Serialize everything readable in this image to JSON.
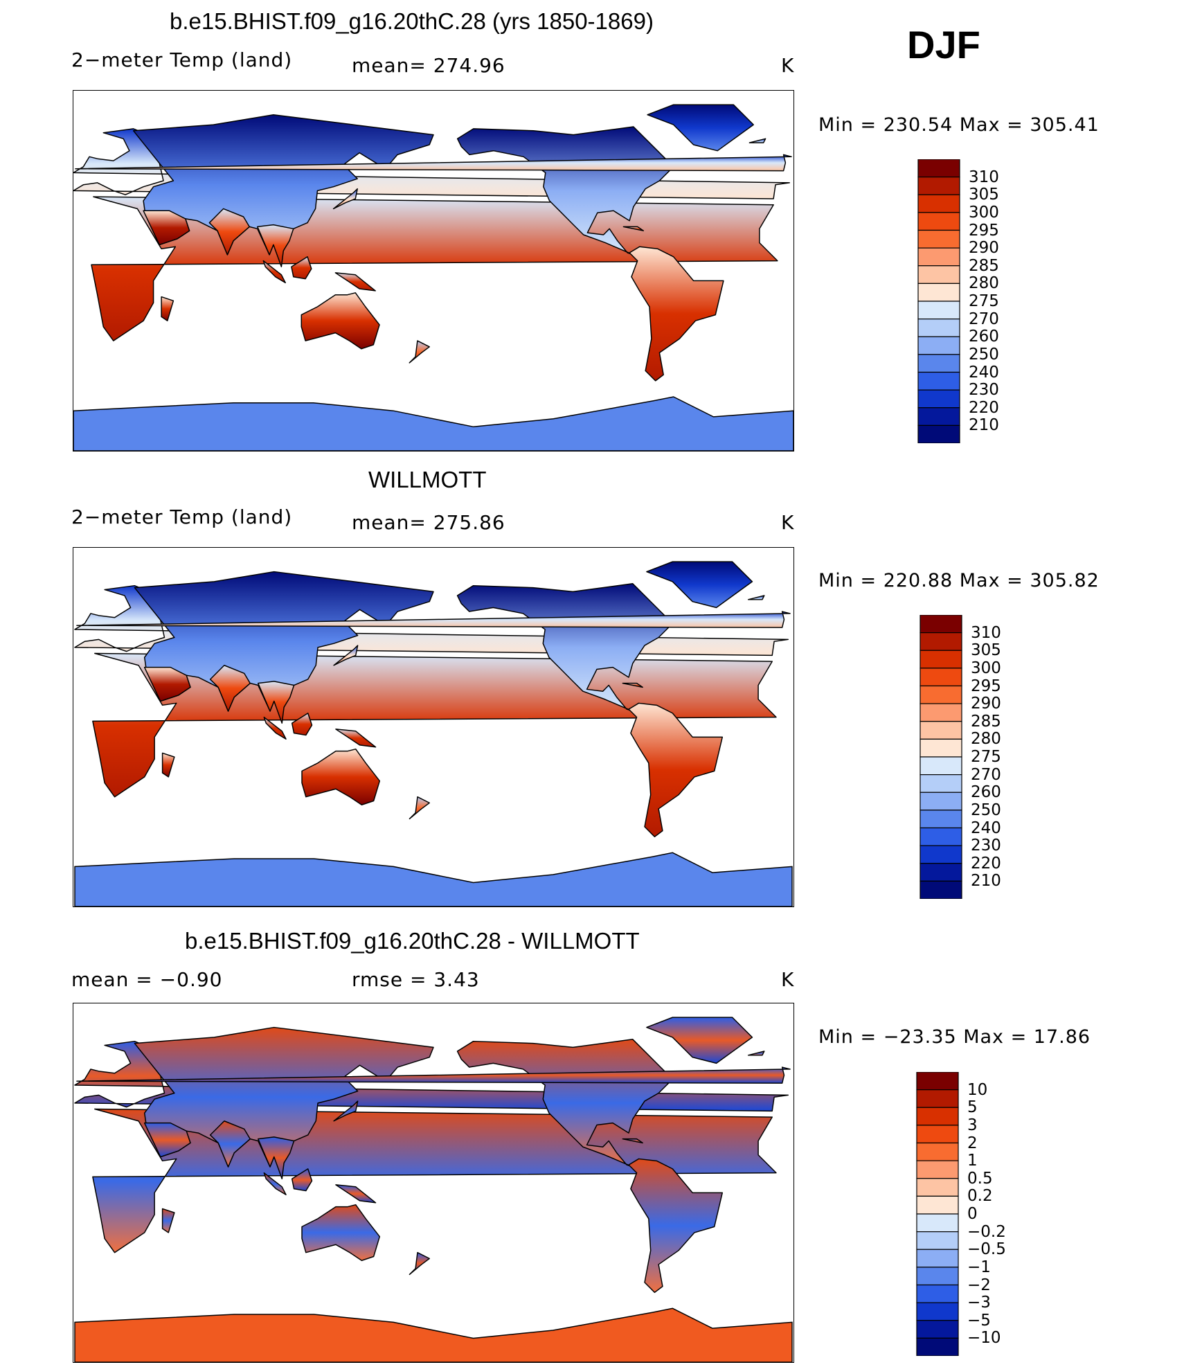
{
  "season": "DJF",
  "panels": [
    {
      "title": "b.e15.BHIST.f09_g16.20thC.28 (yrs 1850-1869)",
      "left_label": "2−meter Temp (land)",
      "mid_label": "mean=  274.96",
      "units": "K",
      "stats": "Min  =  230.54  Max  =  305.41",
      "colorbar_labels": [
        "310",
        "305",
        "300",
        "295",
        "290",
        "285",
        "280",
        "275",
        "270",
        "260",
        "250",
        "240",
        "230",
        "220",
        "210"
      ]
    },
    {
      "title": "WILLMOTT",
      "left_label": "2−meter Temp (land)",
      "mid_label": "mean=  275.86",
      "units": "K",
      "stats": "Min  =  220.88  Max  =  305.82",
      "colorbar_labels": [
        "310",
        "305",
        "300",
        "295",
        "290",
        "285",
        "280",
        "275",
        "270",
        "260",
        "250",
        "240",
        "230",
        "220",
        "210"
      ]
    },
    {
      "title": "b.e15.BHIST.f09_g16.20thC.28 - WILLMOTT",
      "left_label": "mean  =     −0.90",
      "mid_label": "rmse  =     3.43",
      "units": "K",
      "stats": "Min  =  −23.35  Max  =     17.86",
      "colorbar_labels": [
        "10",
        "5",
        "3",
        "2",
        "1",
        "0.5",
        "0.2",
        "0",
        "−0.2",
        "−0.5",
        "−1",
        "−2",
        "−3",
        "−5",
        "−10"
      ]
    }
  ],
  "colors": {
    "abs_scale": [
      "#7a0000",
      "#b21a00",
      "#d83000",
      "#ee4a10",
      "#f86c30",
      "#fc9a70",
      "#fdc4a4",
      "#fee6d4",
      "#d8e8fa",
      "#b4cef8",
      "#8caef4",
      "#5a86ec",
      "#2e5ee6",
      "#1038cc",
      "#04189c",
      "#000a78"
    ],
    "diff_scale": [
      "#7a0000",
      "#b21a00",
      "#d83000",
      "#ee4a10",
      "#f86c30",
      "#fc9a70",
      "#fdc4a4",
      "#fee6d4",
      "#d8e8fa",
      "#b4cef8",
      "#8caef4",
      "#5a86ec",
      "#2e5ee6",
      "#1038cc",
      "#04189c",
      "#000a78"
    ]
  }
}
